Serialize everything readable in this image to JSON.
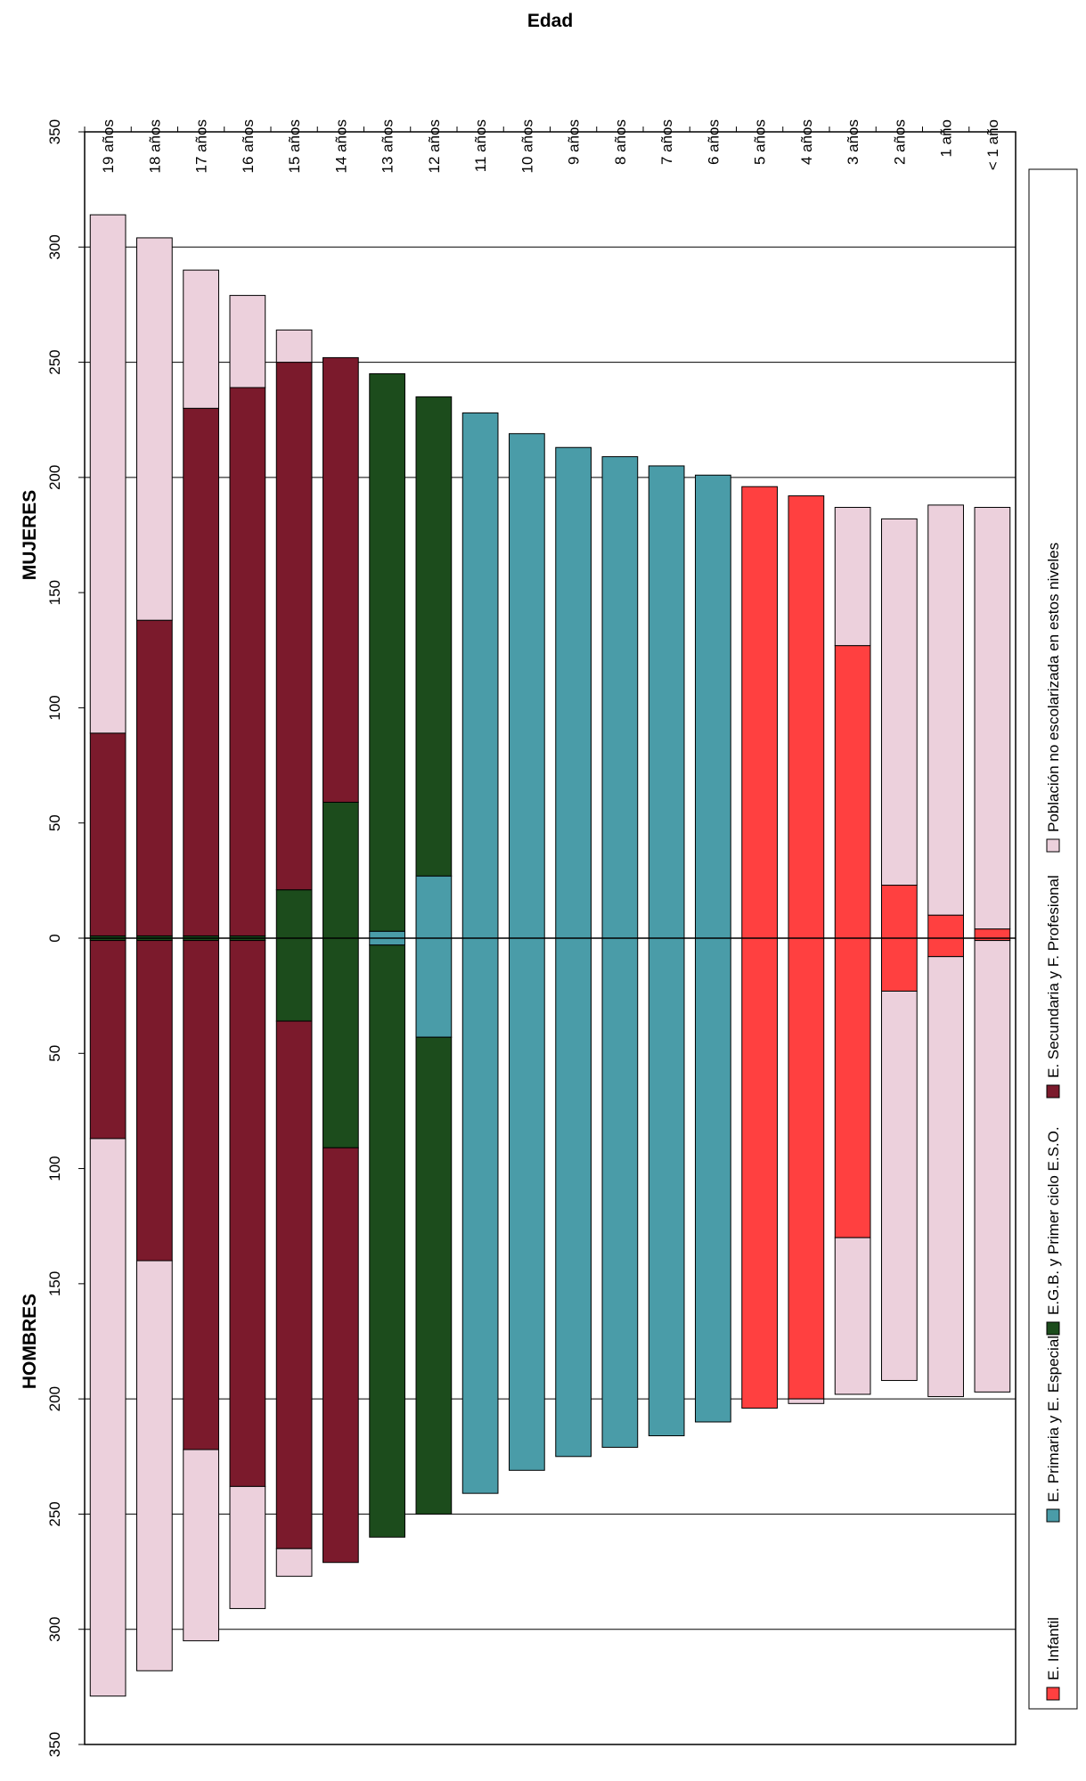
{
  "chart_data": {
    "type": "bar",
    "orientation": "rotated",
    "stacked": true,
    "diverging": true,
    "title": "",
    "category_axis_label": "Edad",
    "group_labels": {
      "top": "MUJERES",
      "bottom": "HOMBRES"
    },
    "categories": [
      "19 años",
      "18 años",
      "17 años",
      "16 años",
      "15 años",
      "14 años",
      "13 años",
      "12 años",
      "11 años",
      "10 años",
      "9 años",
      "8 años",
      "7 años",
      "6 años",
      "5 años",
      "4 años",
      "3 años",
      "2 años",
      "1 año",
      "< 1 año"
    ],
    "value_axis": {
      "min": -350,
      "max": 350,
      "ticks": [
        {
          "value": 350,
          "label": "350"
        },
        {
          "value": 300,
          "label": "300"
        },
        {
          "value": 250,
          "label": "250"
        },
        {
          "value": 200,
          "label": "200"
        },
        {
          "value": 150,
          "label": "150"
        },
        {
          "value": 100,
          "label": "100"
        },
        {
          "value": 50,
          "label": "50"
        },
        {
          "value": 0,
          "label": "0"
        },
        {
          "value": -50,
          "label": "50"
        },
        {
          "value": -100,
          "label": "100"
        },
        {
          "value": -150,
          "label": "150"
        },
        {
          "value": -200,
          "label": "200"
        },
        {
          "value": -250,
          "label": "250"
        },
        {
          "value": -300,
          "label": "300"
        },
        {
          "value": -350,
          "label": "350"
        }
      ],
      "gridlines": [
        -300,
        -250,
        -200,
        200,
        250,
        300
      ]
    },
    "series": [
      {
        "name": "E. Infantil",
        "color": "#ff4040",
        "mujeres": [
          0,
          0,
          0,
          0,
          0,
          0,
          0,
          0,
          0,
          0,
          0,
          0,
          0,
          0,
          196,
          192,
          127,
          23,
          10,
          4
        ],
        "hombres": [
          0,
          0,
          0,
          0,
          0,
          0,
          0,
          0,
          0,
          0,
          0,
          0,
          0,
          0,
          204,
          200,
          130,
          23,
          8,
          1
        ]
      },
      {
        "name": "E. Primaria y E. Especial",
        "color": "#4a9ca8",
        "mujeres": [
          0,
          0,
          0,
          0,
          0,
          0,
          3,
          27,
          228,
          219,
          213,
          209,
          205,
          201,
          0,
          0,
          0,
          0,
          0,
          0
        ],
        "hombres": [
          0,
          0,
          0,
          0,
          0,
          0,
          3,
          43,
          241,
          231,
          225,
          221,
          216,
          210,
          0,
          0,
          0,
          0,
          0,
          0
        ]
      },
      {
        "name": "E.G.B. y Primer ciclo E.S.O.",
        "color": "#1c4c1c",
        "mujeres": [
          1,
          1,
          1,
          1,
          21,
          59,
          242,
          208,
          0,
          0,
          0,
          0,
          0,
          0,
          0,
          0,
          0,
          0,
          0,
          0
        ],
        "hombres": [
          1,
          1,
          1,
          1,
          36,
          91,
          257,
          207,
          0,
          0,
          0,
          0,
          0,
          0,
          0,
          0,
          0,
          0,
          0,
          0
        ]
      },
      {
        "name": "E. Secundaria y F. Profesional",
        "color": "#7b1a2c",
        "mujeres": [
          88,
          137,
          229,
          238,
          229,
          193,
          0,
          0,
          0,
          0,
          0,
          0,
          0,
          0,
          0,
          0,
          0,
          0,
          0,
          0
        ],
        "hombres": [
          86,
          139,
          221,
          237,
          229,
          180,
          0,
          0,
          0,
          0,
          0,
          0,
          0,
          0,
          0,
          0,
          0,
          0,
          0,
          0
        ]
      },
      {
        "name": "Población no escolarizada en estos niveles",
        "color": "#ecd0dc",
        "mujeres": [
          225,
          166,
          60,
          40,
          14,
          0,
          0,
          0,
          0,
          0,
          0,
          0,
          0,
          0,
          0,
          0,
          60,
          159,
          178,
          183
        ],
        "hombres": [
          242,
          178,
          83,
          53,
          12,
          0,
          0,
          0,
          0,
          0,
          0,
          0,
          0,
          0,
          0,
          2,
          68,
          169,
          191,
          196
        ]
      }
    ],
    "legend": {
      "position": "right"
    },
    "grid": true
  }
}
